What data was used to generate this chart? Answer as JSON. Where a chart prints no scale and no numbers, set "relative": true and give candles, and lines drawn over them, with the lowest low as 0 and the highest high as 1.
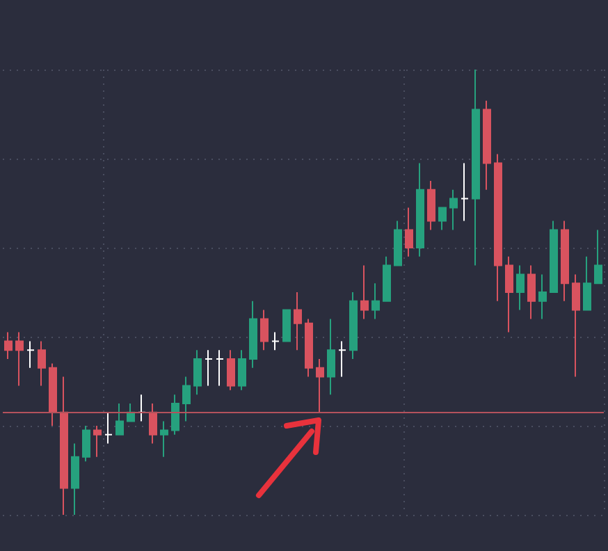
{
  "chart_data": {
    "type": "candlestick",
    "relative": true,
    "grid": true,
    "categories": [
      null,
      null,
      null,
      null,
      null,
      null,
      null,
      null,
      null,
      null,
      null,
      null,
      null,
      null,
      null,
      null,
      null,
      null,
      null,
      null,
      null,
      null,
      null,
      null,
      null,
      null,
      null,
      null,
      null,
      null,
      null,
      null,
      null,
      null,
      null,
      null,
      null,
      null,
      null,
      null,
      null,
      null,
      null,
      null,
      null,
      null,
      null,
      null,
      null,
      null,
      null,
      null,
      null,
      null
    ],
    "ohlc": [
      [
        0.39,
        0.41,
        0.35,
        0.37
      ],
      [
        0.39,
        0.41,
        0.29,
        0.37
      ],
      [
        0.37,
        0.39,
        0.33,
        0.37
      ],
      [
        0.37,
        0.39,
        0.29,
        0.33
      ],
      [
        0.33,
        0.34,
        0.2,
        0.23
      ],
      [
        0.23,
        0.31,
        0,
        0.06
      ],
      [
        0.06,
        0.16,
        0,
        0.13
      ],
      [
        0.13,
        0.2,
        0.12,
        0.19
      ],
      [
        0.19,
        0.2,
        0.13,
        0.18
      ],
      [
        0.18,
        0.23,
        0.16,
        0.18
      ],
      [
        0.18,
        0.25,
        0.18,
        0.21
      ],
      [
        0.21,
        0.25,
        0.21,
        0.23
      ],
      [
        0.23,
        0.27,
        0.21,
        0.23
      ],
      [
        0.23,
        0.25,
        0.16,
        0.18
      ],
      [
        0.18,
        0.21,
        0.13,
        0.19
      ],
      [
        0.19,
        0.27,
        0.18,
        0.25
      ],
      [
        0.25,
        0.31,
        0.21,
        0.29
      ],
      [
        0.29,
        0.37,
        0.27,
        0.35
      ],
      [
        0.35,
        0.37,
        0.29,
        0.35
      ],
      [
        0.35,
        0.37,
        0.29,
        0.35
      ],
      [
        0.35,
        0.37,
        0.28,
        0.29
      ],
      [
        0.29,
        0.37,
        0.28,
        0.35
      ],
      [
        0.35,
        0.48,
        0.33,
        0.44
      ],
      [
        0.44,
        0.46,
        0.37,
        0.39
      ],
      [
        0.39,
        0.41,
        0.37,
        0.39
      ],
      [
        0.39,
        0.46,
        0.39,
        0.46
      ],
      [
        0.46,
        0.5,
        0.37,
        0.43
      ],
      [
        0.43,
        0.44,
        0.31,
        0.33
      ],
      [
        0.33,
        0.35,
        0.23,
        0.31
      ],
      [
        0.31,
        0.44,
        0.27,
        0.37
      ],
      [
        0.37,
        0.39,
        0.31,
        0.37
      ],
      [
        0.37,
        0.5,
        0.35,
        0.48
      ],
      [
        0.48,
        0.56,
        0.44,
        0.46
      ],
      [
        0.46,
        0.52,
        0.44,
        0.48
      ],
      [
        0.48,
        0.58,
        0.48,
        0.56
      ],
      [
        0.56,
        0.66,
        0.56,
        0.64
      ],
      [
        0.64,
        0.69,
        0.58,
        0.6
      ],
      [
        0.6,
        0.79,
        0.58,
        0.73
      ],
      [
        0.73,
        0.75,
        0.64,
        0.66
      ],
      [
        0.66,
        0.69,
        0.64,
        0.69
      ],
      [
        0.69,
        0.73,
        0.64,
        0.71
      ],
      [
        0.71,
        0.79,
        0.66,
        0.71
      ],
      [
        0.71,
        1,
        0.56,
        0.91
      ],
      [
        0.91,
        0.93,
        0.73,
        0.79
      ],
      [
        0.79,
        0.81,
        0.48,
        0.56
      ],
      [
        0.56,
        0.58,
        0.41,
        0.5
      ],
      [
        0.5,
        0.56,
        0.46,
        0.54
      ],
      [
        0.54,
        0.56,
        0.44,
        0.48
      ],
      [
        0.48,
        0.54,
        0.44,
        0.5
      ],
      [
        0.5,
        0.66,
        0.5,
        0.64
      ],
      [
        0.64,
        0.66,
        0.48,
        0.52
      ],
      [
        0.52,
        0.54,
        0.31,
        0.46
      ],
      [
        0.46,
        0.58,
        0.46,
        0.52
      ],
      [
        0.52,
        0.64,
        0.52,
        0.56
      ]
    ],
    "colors": [
      "#d9535f",
      "#d9535f",
      "#ffffff",
      "#d9535f",
      "#d9535f",
      "#d9535f",
      "#26a17e",
      "#26a17e",
      "#d9535f",
      "#ffffff",
      "#26a17e",
      "#26a17e",
      "#ffffff",
      "#d9535f",
      "#26a17e",
      "#26a17e",
      "#26a17e",
      "#26a17e",
      "#ffffff",
      "#ffffff",
      "#d9535f",
      "#26a17e",
      "#26a17e",
      "#d9535f",
      "#ffffff",
      "#26a17e",
      "#d9535f",
      "#d9535f",
      "#d9535f",
      "#26a17e",
      "#ffffff",
      "#26a17e",
      "#d9535f",
      "#26a17e",
      "#26a17e",
      "#26a17e",
      "#d9535f",
      "#26a17e",
      "#d9535f",
      "#26a17e",
      "#26a17e",
      "#ffffff",
      "#26a17e",
      "#d9535f",
      "#d9535f",
      "#d9535f",
      "#26a17e",
      "#d9535f",
      "#26a17e",
      "#26a17e",
      "#d9535f",
      "#d9535f",
      "#26a17e",
      "#26a17e"
    ],
    "ref_lines": [
      {
        "axis": "y",
        "value": 0.23,
        "color": "#b4525c"
      }
    ]
  }
}
